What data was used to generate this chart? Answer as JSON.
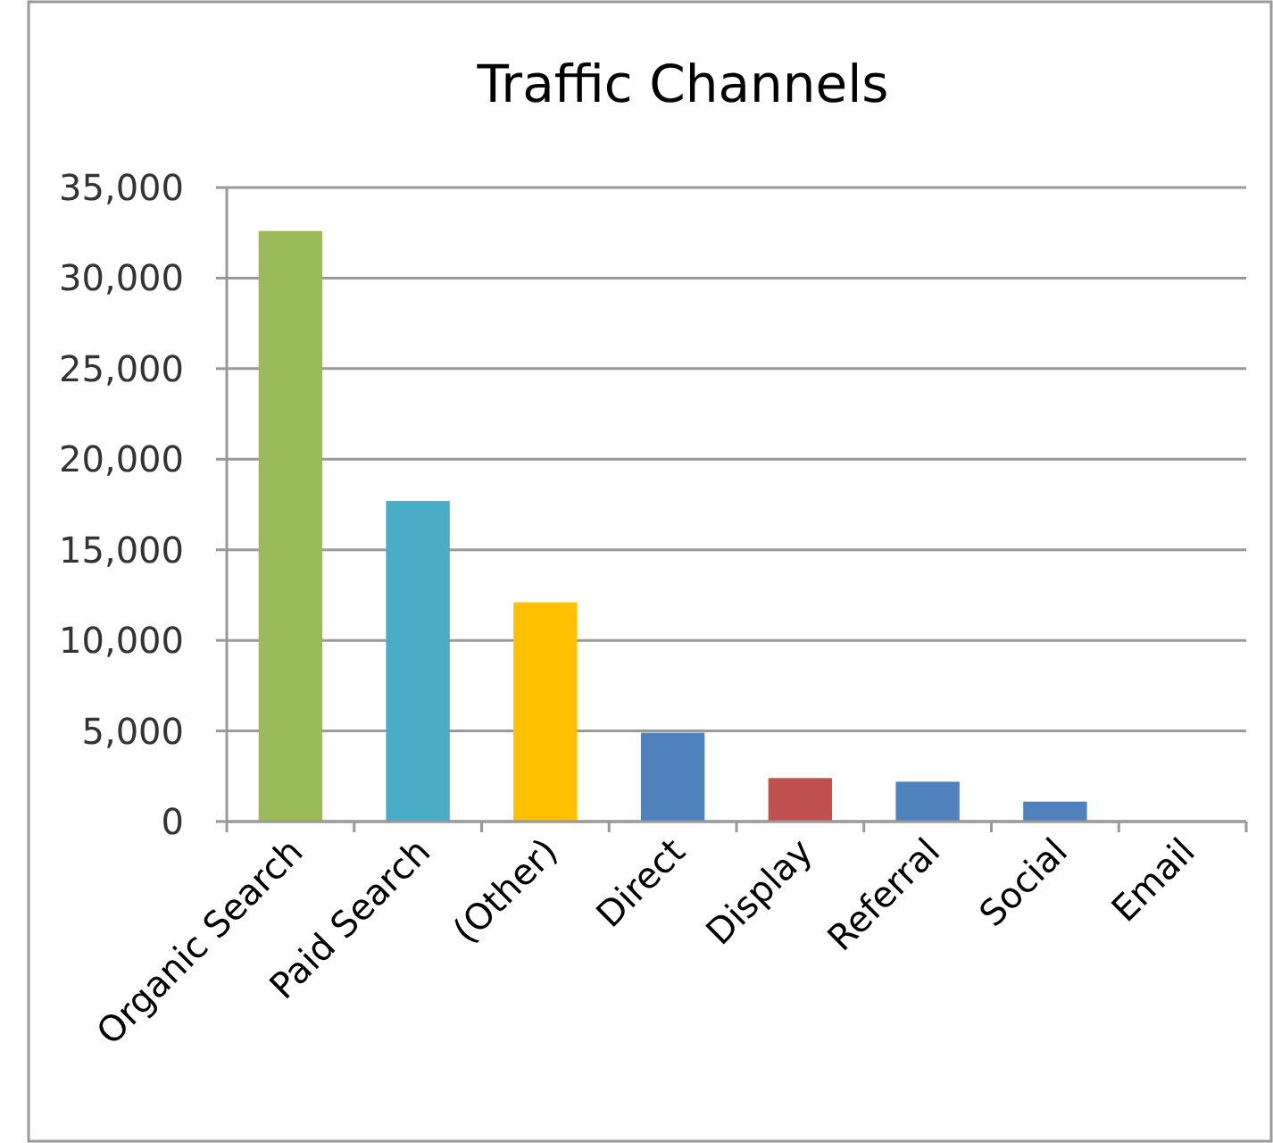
{
  "chart_data": {
    "type": "bar",
    "title": "Traffic Channels",
    "categories": [
      "Organic Search",
      "Paid Search",
      "(Other)",
      "Direct",
      "Display",
      "Referral",
      "Social",
      "Email"
    ],
    "values": [
      32600,
      17700,
      12100,
      4900,
      2400,
      2200,
      1100,
      0
    ],
    "colors": [
      "#9bbb59",
      "#4bacc6",
      "#ffc000",
      "#4f81bd",
      "#c0504d",
      "#4f81bd",
      "#4f81bd",
      "#4f81bd"
    ],
    "ylim": [
      0,
      35000
    ],
    "yticks": [
      {
        "value": 0,
        "label": "0"
      },
      {
        "value": 5000,
        "label": "5,000"
      },
      {
        "value": 10000,
        "label": "10,000"
      },
      {
        "value": 15000,
        "label": "15,000"
      },
      {
        "value": 20000,
        "label": "20,000"
      },
      {
        "value": 25000,
        "label": "25,000"
      },
      {
        "value": 30000,
        "label": "30,000"
      },
      {
        "value": 35000,
        "label": "35,000"
      }
    ],
    "grid": "y"
  }
}
